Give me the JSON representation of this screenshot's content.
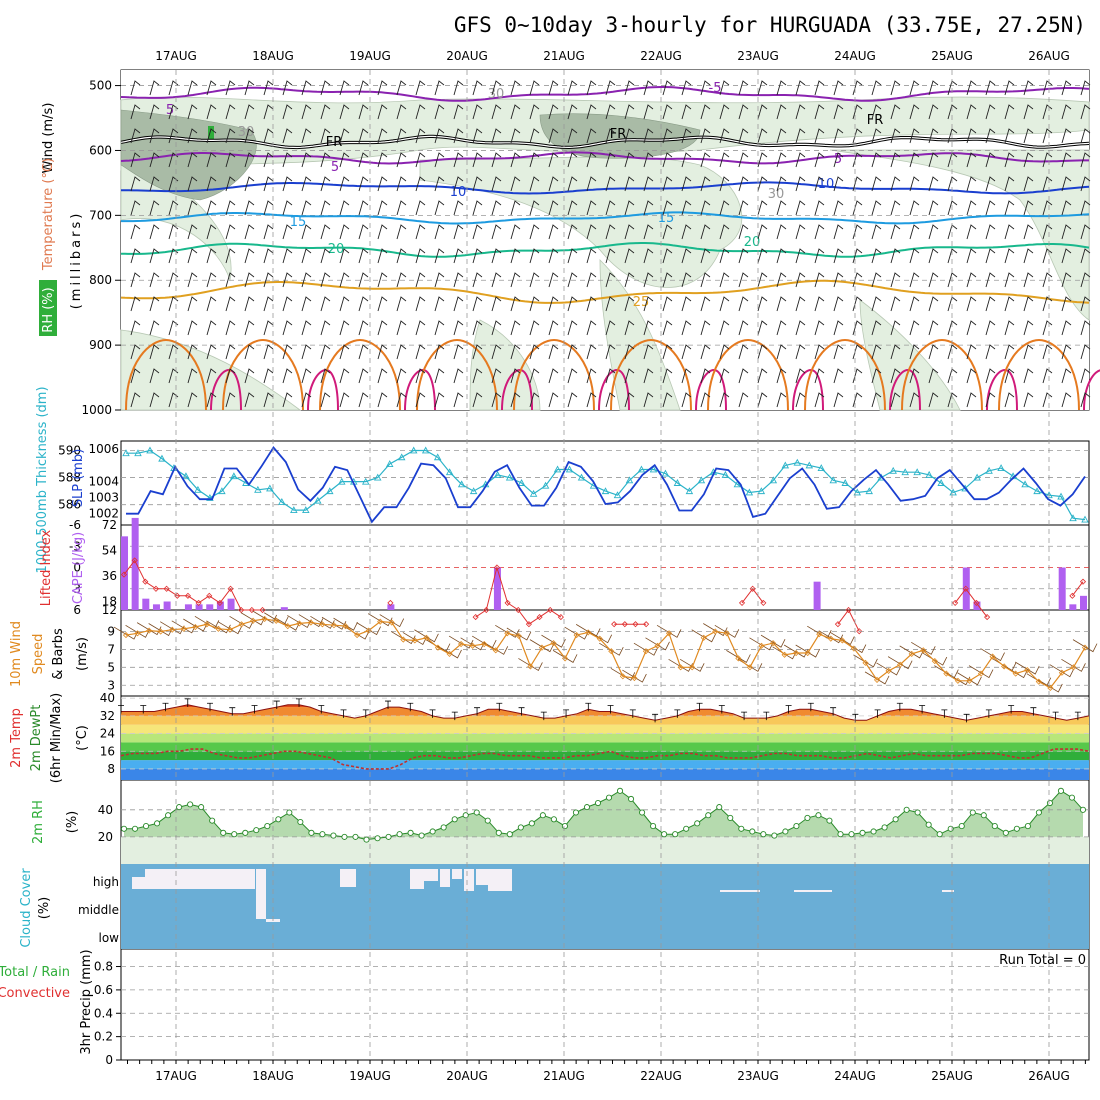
{
  "title": "GFS 0~10day 3-hourly for HURGUADA (33.75E, 27.25N)",
  "dates": [
    "17AUG",
    "18AUG",
    "19AUG",
    "20AUG",
    "21AUG",
    "22AUG",
    "23AUG",
    "24AUG",
    "25AUG",
    "26AUG"
  ],
  "colors": {
    "grid": "#999999",
    "rh_green": "#2fae3a",
    "cyan": "#2bb3c9",
    "blue": "#1a3fcf",
    "red": "#e03030",
    "violet": "#b060f0",
    "orange": "#e08a20",
    "purple": "#8a22b0",
    "cloud": "#6aaed6"
  },
  "upper": {
    "ylabel": "(millibars)",
    "side_labels": [
      {
        "text": "Wind (m/s)",
        "color": "#000000"
      },
      {
        "text": "Temperature (°C)",
        "color": "#e07a50"
      },
      {
        "text": "RH (%)",
        "color": "#2fae3a"
      }
    ],
    "y_ticks": [
      "500",
      "600",
      "700",
      "800",
      "900",
      "1000"
    ],
    "contour_labels": {
      "m5": "-5",
      "fr": "FR",
      "p5": "5",
      "p10": "10",
      "p15": "15",
      "p20": "20",
      "p25": "25",
      "rh30": "30"
    }
  },
  "panel_labels": {
    "thick": "1000-500mb Thickness (dm)",
    "slp": "SLP (mb)",
    "li": "Lifted Index",
    "cape": "CAPE (J/kg)",
    "wind": "10m Wind Speed & Barbs",
    "wind_unit": "(m/s)",
    "temp1": "2m Temp",
    "temp2": "2m DewPt",
    "temp3": "(6hr Min/Max)",
    "temp_unit": "(°C)",
    "rh": "2m RH",
    "rh_unit": "(%)",
    "cloud": "Cloud Cover",
    "cloud_unit": "(%)",
    "precip_unit": "3hr Precip (mm)",
    "total_rain": "Total / Rain",
    "convective": "Convective",
    "run_total": "Run Total = 0"
  },
  "chart_data": [
    {
      "type": "line",
      "title": "SLP and 1000-500mb Thickness",
      "series": [
        {
          "name": "SLP (mb)",
          "axis": "right",
          "values": [
            1002.0,
            1002.0,
            1003.4,
            1003.2,
            1004.9,
            1003.7,
            1002.9,
            1002.9,
            1004.8,
            1004.8,
            1003.8,
            1004.9,
            1006.1,
            1005.2,
            1003.5,
            1002.8,
            1003.6,
            1004.9,
            1004.7,
            1003.1,
            1001.5,
            1002.4,
            1002.4,
            1003.6,
            1005.1,
            1005.0,
            1004.2,
            1002.4,
            1002.4,
            1003.4,
            1004.6,
            1005.0,
            1003.6,
            1002.5,
            1002.5,
            1003.6,
            1005.2,
            1004.9,
            1004.0,
            1002.6,
            1002.7,
            1003.4,
            1004.4,
            1005.0,
            1003.8,
            1002.2,
            1002.2,
            1003.2,
            1004.8,
            1004.7,
            1003.8,
            1001.8,
            1002.0,
            1003.1,
            1004.2,
            1004.8,
            1003.8,
            1002.3,
            1002.4,
            1003.4,
            1004.1,
            1004.7,
            1003.8,
            1002.8,
            1002.9,
            1003.1,
            1004.2,
            1004.7,
            1003.8,
            1002.9,
            1002.9,
            1003.3,
            1004.1,
            1004.8,
            1003.9,
            1002.9,
            1002.5,
            1003.2,
            1004.3
          ]
        },
        {
          "name": "1000-500mb Thickness (dm)",
          "axis": "left",
          "values": [
            589.8,
            589.8,
            590.0,
            589.4,
            588.7,
            588.1,
            587.1,
            586.5,
            587.0,
            588.1,
            587.6,
            587.1,
            587.2,
            586.2,
            585.6,
            585.6,
            586.3,
            587.0,
            587.7,
            587.7,
            587.7,
            588.0,
            589.0,
            589.5,
            590.0,
            590.0,
            589.5,
            588.4,
            587.5,
            587.0,
            587.5,
            588.2,
            588.0,
            587.6,
            586.8,
            587.4,
            588.6,
            588.6,
            588.0,
            587.4,
            587.0,
            586.7,
            587.8,
            588.6,
            588.6,
            588.3,
            587.6,
            587.0,
            587.8,
            588.4,
            588.2,
            587.5,
            586.9,
            587.0,
            587.8,
            588.9,
            589.1,
            588.9,
            588.7,
            587.8,
            587.6,
            586.9,
            587.0,
            588.0,
            588.5,
            588.4,
            588.4,
            588.2,
            587.6,
            586.9,
            587.2,
            588.0,
            588.5,
            588.7,
            588.1,
            587.5,
            587.0,
            586.7,
            586.6,
            585.0,
            584.9
          ]
        }
      ],
      "left_ticks": [
        "586",
        "588",
        "590"
      ],
      "right_ticks": [
        "1002",
        "1003",
        "1004",
        "1006"
      ]
    },
    {
      "type": "bar",
      "title": "Lifted Index and CAPE",
      "series": [
        {
          "name": "CAPE (J/kg)",
          "values": [
            52,
            65,
            8,
            4,
            6,
            0,
            4,
            4,
            4,
            6,
            8,
            0,
            0,
            0,
            0,
            2,
            0,
            0,
            0,
            0,
            0,
            0,
            0,
            0,
            0,
            4,
            0,
            0,
            0,
            0,
            0,
            0,
            0,
            0,
            0,
            30,
            0,
            0,
            0,
            0,
            0,
            0,
            0,
            0,
            0,
            0,
            0,
            0,
            0,
            0,
            0,
            0,
            0,
            0,
            0,
            0,
            0,
            0,
            0,
            0,
            0,
            0,
            0,
            0,
            0,
            20,
            0,
            0,
            0,
            0,
            0,
            0,
            0,
            0,
            0,
            0,
            0,
            0,
            0,
            30,
            6,
            0,
            0,
            0,
            0,
            0,
            0,
            0,
            30,
            4,
            10
          ]
        },
        {
          "name": "Lifted Index",
          "values": [
            1,
            -1,
            2,
            3,
            3,
            4,
            4,
            5,
            4,
            5,
            3,
            6,
            6,
            6,
            12,
            12,
            12,
            12,
            12,
            12,
            12,
            12,
            12,
            12,
            12,
            5,
            12,
            12,
            12,
            12,
            12,
            12,
            12,
            7,
            6,
            0,
            5,
            6,
            8,
            7,
            6,
            7,
            12,
            12,
            12,
            12,
            8,
            8,
            8,
            8,
            12,
            12,
            12,
            12,
            12,
            12,
            12,
            12,
            5,
            3,
            5,
            12,
            12,
            12,
            12,
            12,
            12,
            8,
            6,
            9,
            12,
            12,
            12,
            12,
            12,
            12,
            12,
            12,
            5,
            3,
            5,
            7,
            12,
            12,
            12,
            12,
            12,
            12,
            12,
            4,
            2
          ]
        }
      ],
      "li_ticks": [
        "-6",
        "-3",
        "0",
        "3",
        "6"
      ],
      "cape_ticks": [
        "12",
        "18",
        "36",
        "54",
        "72"
      ]
    },
    {
      "type": "line",
      "title": "10m Wind Speed",
      "series": [
        {
          "name": "10m Wind Speed (m/s)",
          "values": [
            8.6,
            8.8,
            9.1,
            9.0,
            9.2,
            9.3,
            9.5,
            9.8,
            9.3,
            9.2,
            9.8,
            10.2,
            10.4,
            10.2,
            9.6,
            9.9,
            10.0,
            9.8,
            9.7,
            9.6,
            8.6,
            9.1,
            10.1,
            10.0,
            8.1,
            8.0,
            8.3,
            7.2,
            6.5,
            7.6,
            7.4,
            7.6,
            6.9,
            8.8,
            8.5,
            5.1,
            7.2,
            7.7,
            6.0,
            8.6,
            8.9,
            8.2,
            6.8,
            4.0,
            3.8,
            6.8,
            7.4,
            8.8,
            5.0,
            5.0,
            8.3,
            9.0,
            8.8,
            6.0,
            5.0,
            7.4,
            7.7,
            6.4,
            6.6,
            6.6,
            8.7,
            8.2,
            8.0,
            7.1,
            5.5,
            3.6,
            4.6,
            5.3,
            6.5,
            6.9,
            5.7,
            4.3,
            3.5,
            3.5,
            4.3,
            6.2,
            5.1,
            4.3,
            4.7,
            3.4,
            2.7,
            4.4,
            5.0,
            7.2
          ]
        }
      ],
      "y_ticks": [
        "3",
        "5",
        "7",
        "9"
      ]
    },
    {
      "type": "area",
      "title": "2m Temp and DewPt",
      "series": [
        {
          "name": "2m Temp (°C)",
          "values": [
            34,
            34,
            34,
            34,
            35,
            36,
            37,
            36,
            35,
            34,
            33,
            33,
            34,
            35,
            36,
            37,
            37,
            36,
            34,
            33,
            32,
            31,
            32,
            34,
            36,
            36,
            35,
            34,
            32,
            31,
            31,
            32,
            33,
            35,
            35,
            34,
            33,
            32,
            31,
            31,
            32,
            33,
            35,
            34,
            34,
            33,
            32,
            31,
            30,
            31,
            32,
            34,
            35,
            35,
            34,
            33,
            31,
            31,
            31,
            32,
            34,
            35,
            35,
            34,
            33,
            31,
            30,
            30,
            32,
            34,
            35,
            35,
            34,
            33,
            32,
            31,
            30,
            31,
            32,
            33,
            34,
            34,
            33,
            32,
            31,
            30,
            31,
            32
          ]
        },
        {
          "name": "2m DewPt (°C)",
          "values": [
            14,
            15,
            15,
            15,
            16,
            16,
            17,
            17,
            15,
            14,
            13,
            13,
            14,
            15,
            16,
            16,
            15,
            14,
            13,
            10,
            9,
            8,
            8,
            8,
            10,
            13,
            14,
            14,
            13,
            13,
            14,
            15,
            15,
            14,
            14,
            14,
            13,
            13,
            13,
            14,
            14,
            15,
            16,
            14,
            13,
            13,
            14,
            14,
            15,
            15,
            14,
            14,
            13,
            13,
            13,
            14,
            15,
            15,
            14,
            14,
            14,
            13,
            13,
            14,
            15,
            14,
            13,
            14,
            15,
            14,
            14,
            14,
            14,
            15,
            15,
            15,
            14,
            13,
            13,
            15,
            17,
            17,
            17,
            16
          ]
        }
      ],
      "y_ticks": [
        "8",
        "16",
        "24",
        "32",
        "40"
      ]
    },
    {
      "type": "area",
      "title": "2m RH",
      "series": [
        {
          "name": "2m RH (%)",
          "values": [
            26,
            26,
            28,
            30,
            36,
            42,
            44,
            42,
            32,
            23,
            22,
            23,
            25,
            28,
            33,
            38,
            31,
            23,
            22,
            21,
            20,
            20,
            18,
            19,
            20,
            22,
            23,
            21,
            24,
            27,
            33,
            36,
            38,
            32,
            23,
            22,
            27,
            30,
            36,
            33,
            28,
            38,
            42,
            45,
            49,
            54,
            48,
            38,
            28,
            22,
            22,
            26,
            30,
            36,
            42,
            34,
            26,
            24,
            22,
            21,
            24,
            28,
            34,
            36,
            32,
            22,
            22,
            23,
            24,
            27,
            33,
            40,
            38,
            29,
            22,
            26,
            28,
            38,
            36,
            28,
            23,
            26,
            28,
            38,
            45,
            54,
            49,
            40
          ]
        }
      ],
      "y_ticks": [
        "20",
        "40"
      ]
    },
    {
      "type": "bar",
      "title": "Cloud Cover",
      "categories": [
        "high",
        "middle",
        "low"
      ],
      "y_ticks": [
        "high",
        "middle",
        "low"
      ]
    },
    {
      "type": "bar",
      "title": "3hr Precip (mm)",
      "values": [],
      "y_ticks": [
        "0",
        "0.2",
        "0.4",
        "0.6",
        "0.8"
      ]
    }
  ]
}
